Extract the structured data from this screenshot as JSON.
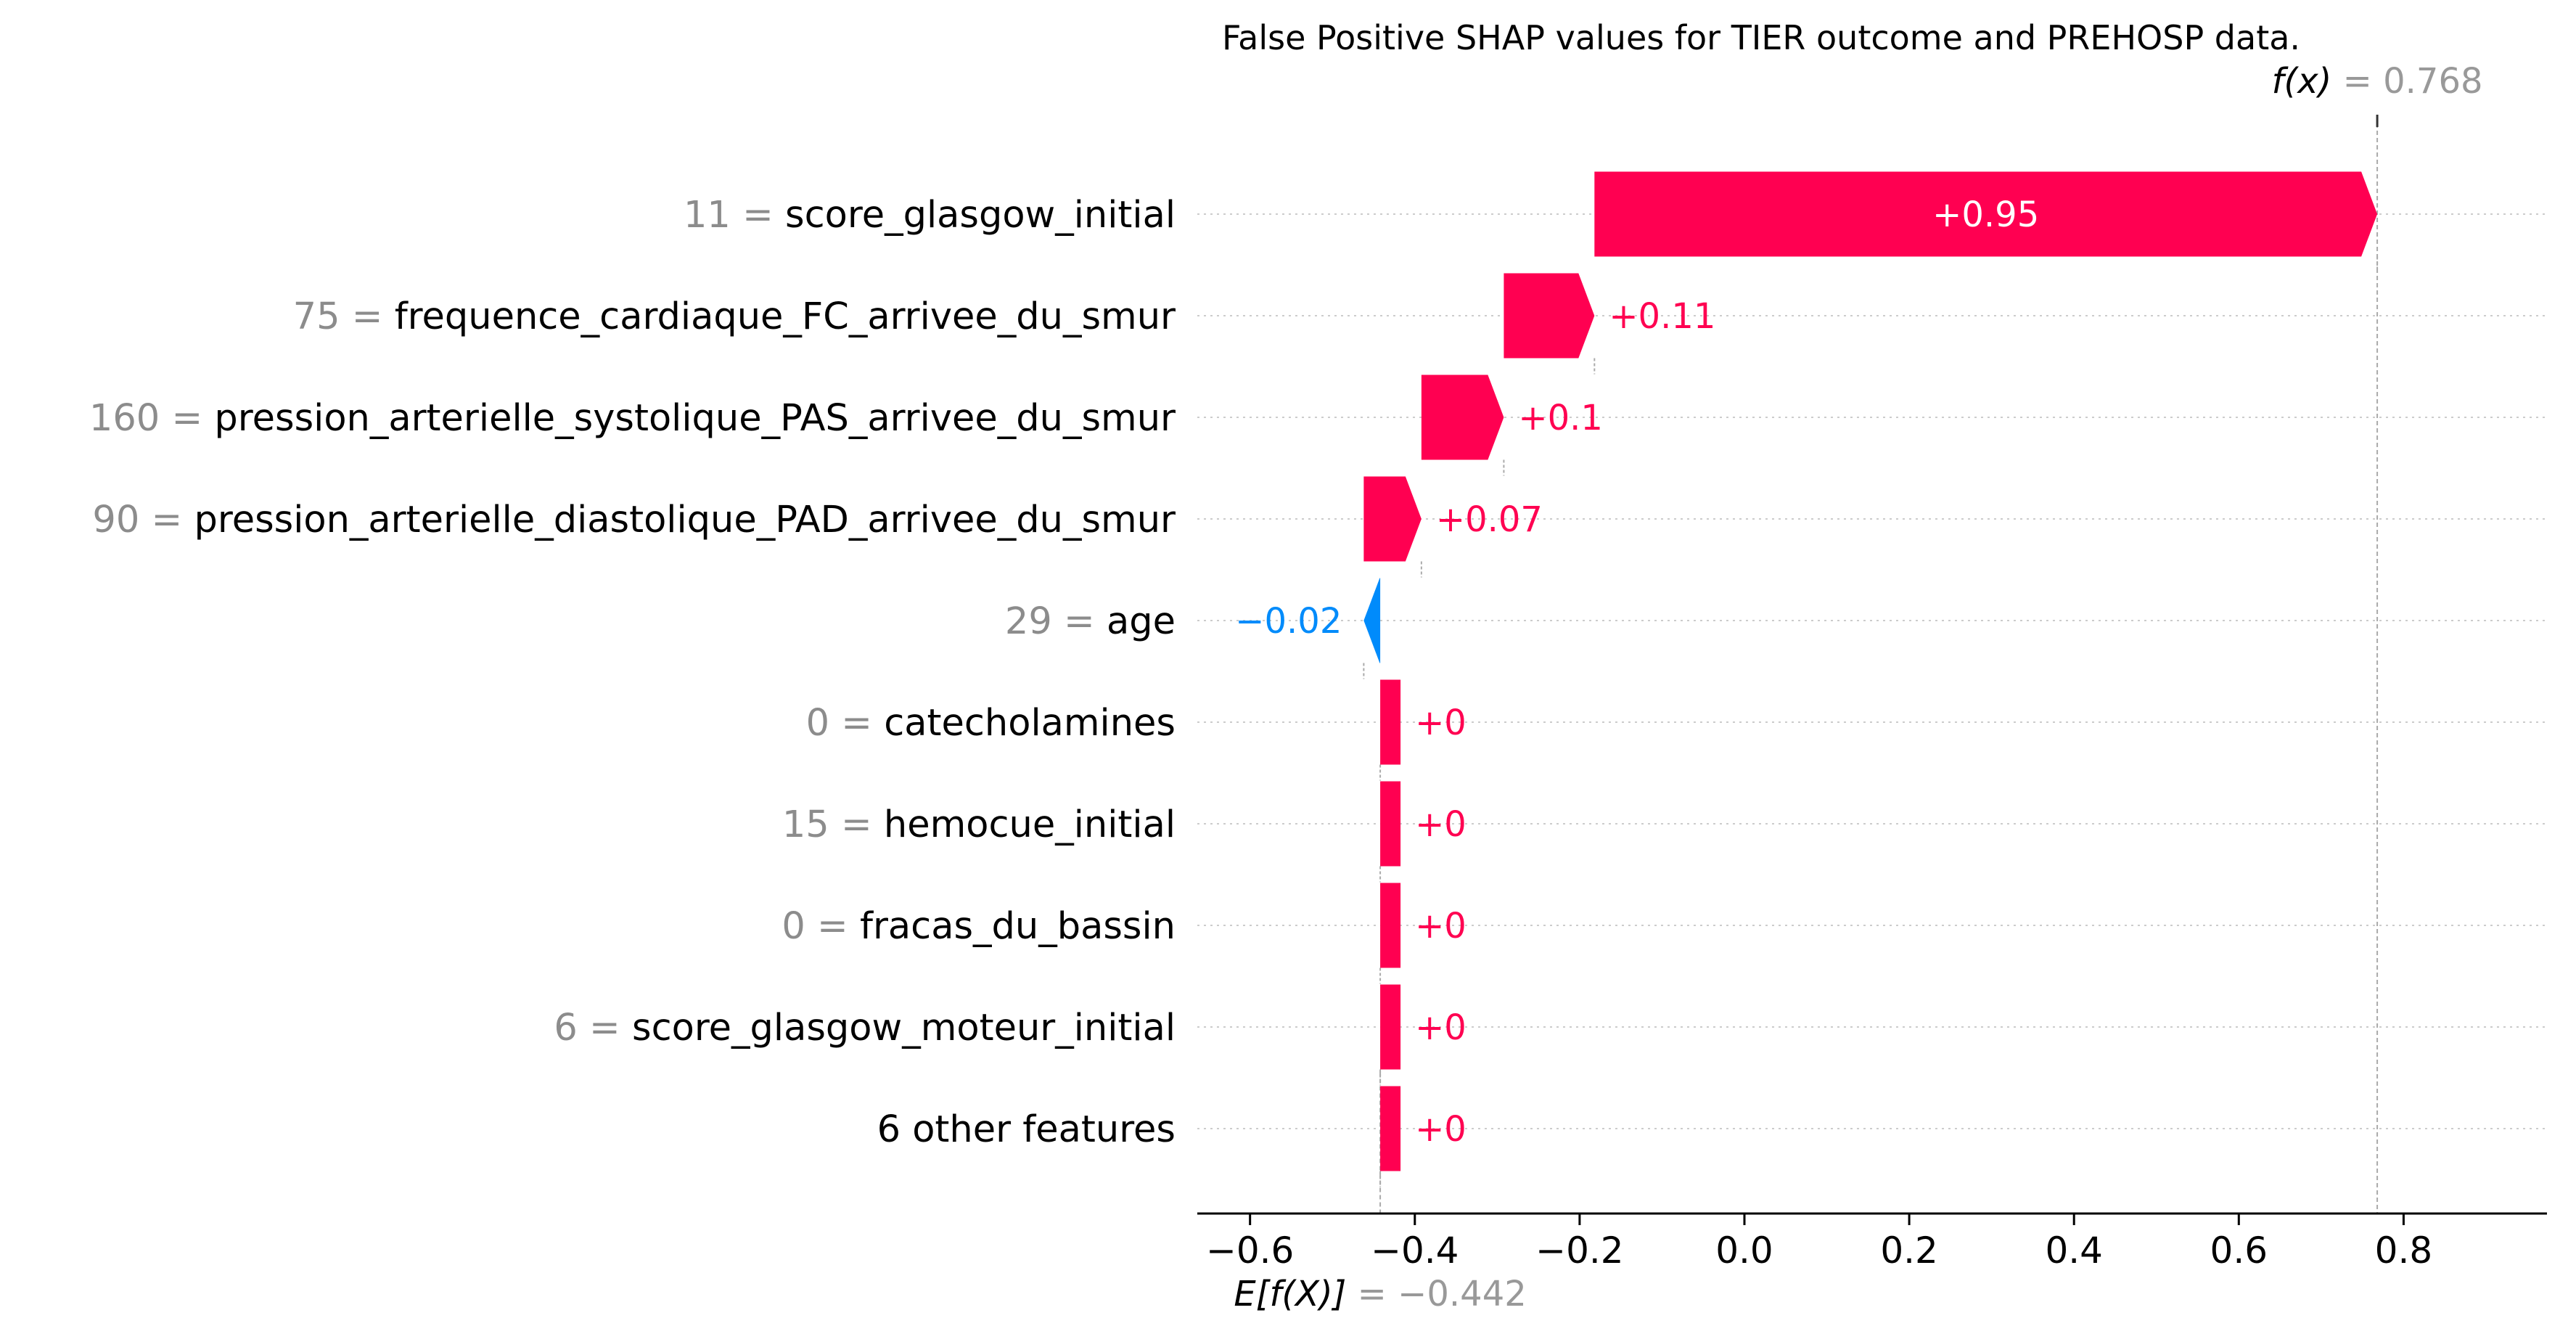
{
  "chart_data": {
    "type": "bar",
    "subtype": "shap-waterfall",
    "title": "False Positive SHAP values for TIER outcome and PREHOSP data.",
    "base_value": -0.442,
    "output_value": 0.768,
    "base_label": {
      "key": "E[f(X)]",
      "value": "= −0.442"
    },
    "output_label": {
      "key": "f(x)",
      "value": "= 0.768"
    },
    "features": [
      {
        "value": "11",
        "name": "score_glasgow_initial",
        "shap": 0.95,
        "label": "+0.95"
      },
      {
        "value": "75",
        "name": "frequence_cardiaque_FC_arrivee_du_smur",
        "shap": 0.11,
        "label": "+0.11"
      },
      {
        "value": "160",
        "name": "pression_arterielle_systolique_PAS_arrivee_du_smur",
        "shap": 0.1,
        "label": "+0.1"
      },
      {
        "value": "90",
        "name": "pression_arterielle_diastolique_PAD_arrivee_du_smur",
        "shap": 0.07,
        "label": "+0.07"
      },
      {
        "value": "29",
        "name": "age",
        "shap": -0.02,
        "label": "−0.02"
      },
      {
        "value": "0",
        "name": "catecholamines",
        "shap": 0.0,
        "label": "+0"
      },
      {
        "value": "15",
        "name": "hemocue_initial",
        "shap": 0.0,
        "label": "+0"
      },
      {
        "value": "0",
        "name": "fracas_du_bassin",
        "shap": 0.0,
        "label": "+0"
      },
      {
        "value": "6",
        "name": "score_glasgow_moteur_initial",
        "shap": 0.0,
        "label": "+0"
      },
      {
        "value": "",
        "name": "6 other features",
        "shap": 0.0,
        "label": "+0"
      }
    ],
    "x_ticks": [
      -0.6,
      -0.4,
      -0.2,
      0.0,
      0.2,
      0.4,
      0.6,
      0.8
    ],
    "x_tick_labels": [
      "−0.6",
      "−0.4",
      "−0.2",
      "0.0",
      "0.2",
      "0.4",
      "0.6",
      "0.8"
    ],
    "xlim": [
      -0.664,
      0.974
    ],
    "colors": {
      "positive": "#ff0051",
      "negative": "#008bfb",
      "grid": "#cccccc"
    }
  }
}
